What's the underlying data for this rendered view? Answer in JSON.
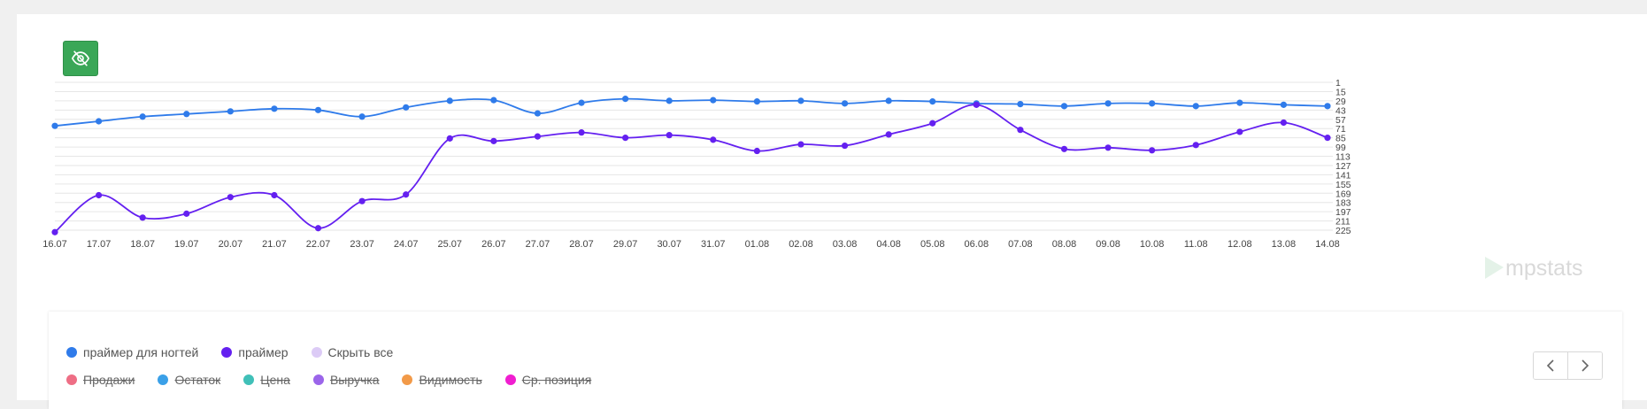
{
  "chart_data": {
    "type": "line",
    "title": "",
    "xlabel": "",
    "ylabel": "",
    "y_reversed": true,
    "ylim": [
      1,
      225
    ],
    "yticks": [
      1,
      15,
      29,
      43,
      57,
      71,
      85,
      99,
      113,
      127,
      141,
      155,
      169,
      183,
      197,
      211,
      225
    ],
    "categories": [
      "16.07",
      "17.07",
      "18.07",
      "19.07",
      "20.07",
      "21.07",
      "22.07",
      "23.07",
      "24.07",
      "25.07",
      "26.07",
      "27.07",
      "28.07",
      "29.07",
      "30.07",
      "31.07",
      "01.08",
      "02.08",
      "03.08",
      "04.08",
      "05.08",
      "06.08",
      "07.08",
      "08.08",
      "09.08",
      "10.08",
      "11.08",
      "12.08",
      "13.08",
      "14.08"
    ],
    "grid": true,
    "series": [
      {
        "name": "праймер для ногтей",
        "color": "#2f7bea",
        "values": [
          67,
          60,
          53,
          49,
          45,
          41,
          43,
          53,
          39,
          29,
          28,
          48,
          32,
          26,
          29,
          28,
          30,
          29,
          33,
          29,
          30,
          33,
          34,
          37,
          33,
          33,
          37,
          32,
          35,
          37
        ]
      },
      {
        "name": "праймер",
        "color": "#6420f0",
        "values": [
          228,
          172,
          206,
          200,
          175,
          172,
          222,
          181,
          171,
          86,
          90,
          83,
          77,
          85,
          81,
          88,
          105,
          95,
          97,
          80,
          63,
          35,
          73,
          102,
          100,
          104,
          96,
          76,
          62,
          85
        ]
      }
    ]
  },
  "legend": {
    "series": [
      {
        "label": "праймер для ногтей",
        "color": "#2f7bea"
      },
      {
        "label": "праймер",
        "color": "#6420f0"
      },
      {
        "label": "Скрыть все",
        "color": "#dccbf6"
      }
    ],
    "metrics": [
      {
        "label": "Продажи",
        "color": "#ee6e85"
      },
      {
        "label": "Остаток",
        "color": "#3aa0e8"
      },
      {
        "label": "Цена",
        "color": "#40c0b8"
      },
      {
        "label": "Выручка",
        "color": "#9b65ea"
      },
      {
        "label": "Видимость",
        "color": "#f29a48"
      },
      {
        "label": "Ср. позиция",
        "color": "#f01ed0"
      }
    ]
  },
  "watermark": "mpstats",
  "icons": {
    "toggle": "eye-off-icon",
    "prev": "chevron-left-icon",
    "next": "chevron-right-icon"
  }
}
